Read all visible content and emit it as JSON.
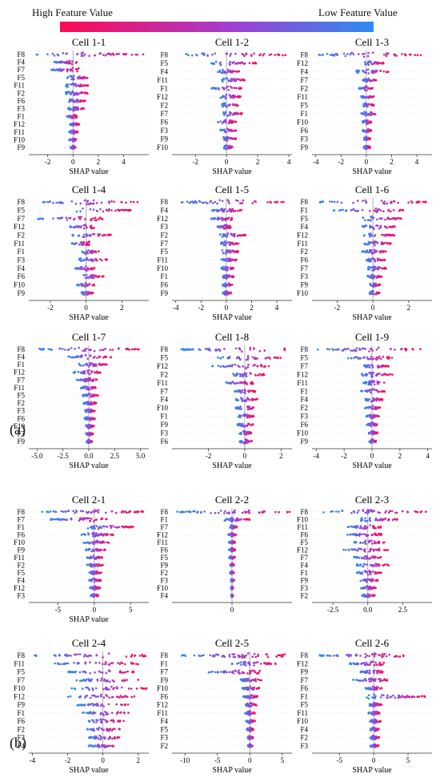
{
  "legend": {
    "high_label": "High Feature Value",
    "low_label": "Low Feature Value",
    "colors": {
      "high": "#ff0a54",
      "mid": "#a23fd1",
      "low": "#2c8cf2"
    }
  },
  "panel_labels": {
    "a": "(a)",
    "b": "(b)"
  },
  "chart_data": [
    {
      "type": "scatter",
      "title": "Cell 1-1",
      "xlabel": "SHAP value",
      "xlim": [
        -3.5,
        6
      ],
      "xticks": [
        -2,
        0,
        2,
        4
      ],
      "features": [
        "F8",
        "F4",
        "F7",
        "F5",
        "F11",
        "F2",
        "F6",
        "F3",
        "F1",
        "F12",
        "F11",
        "F10",
        "F9"
      ],
      "ranges": [
        [
          -3.0,
          5.8
        ],
        [
          -1.5,
          0.3
        ],
        [
          -1.8,
          0.5
        ],
        [
          -0.5,
          1.3
        ],
        [
          -0.6,
          1.2
        ],
        [
          -0.6,
          1.3
        ],
        [
          -0.5,
          1.0
        ],
        [
          -0.4,
          0.9
        ],
        [
          -0.5,
          0.3
        ],
        [
          -0.3,
          0.5
        ],
        [
          -0.3,
          0.4
        ],
        [
          -0.3,
          0.3
        ],
        [
          -0.2,
          0.2
        ]
      ]
    },
    {
      "type": "scatter",
      "title": "Cell 1-2",
      "xlabel": "SHAP value",
      "xlim": [
        -3.5,
        4.2
      ],
      "xticks": [
        -2,
        0,
        2,
        4
      ],
      "features": [
        "F8",
        "F5",
        "F4",
        "F11",
        "F1",
        "F12",
        "F2",
        "F7",
        "F6",
        "F3",
        "F9",
        "F10"
      ],
      "ranges": [
        [
          -2.7,
          3.8
        ],
        [
          -1.0,
          2.0
        ],
        [
          -0.6,
          0.9
        ],
        [
          -0.3,
          1.2
        ],
        [
          -1.0,
          1.0
        ],
        [
          -0.5,
          1.0
        ],
        [
          -0.3,
          0.8
        ],
        [
          -0.3,
          1.0
        ],
        [
          -0.7,
          0.6
        ],
        [
          -0.4,
          0.6
        ],
        [
          -0.3,
          0.6
        ],
        [
          -0.2,
          0.4
        ]
      ]
    },
    {
      "type": "scatter",
      "title": "Cell 1-3",
      "xlabel": "SHAP value",
      "xlim": [
        -4.3,
        5.2
      ],
      "xticks": [
        -4,
        -2,
        0,
        2,
        4
      ],
      "features": [
        "F8",
        "F12",
        "F4",
        "F7",
        "F2",
        "F11",
        "F5",
        "F1",
        "F10",
        "F6",
        "F3",
        "F9"
      ],
      "ranges": [
        [
          -4.0,
          4.6
        ],
        [
          -0.3,
          1.4
        ],
        [
          -0.8,
          1.8
        ],
        [
          -0.3,
          0.8
        ],
        [
          -0.6,
          0.5
        ],
        [
          -0.4,
          0.6
        ],
        [
          -0.3,
          0.6
        ],
        [
          -0.4,
          1.0
        ],
        [
          -0.3,
          0.4
        ],
        [
          -0.3,
          0.4
        ],
        [
          -0.2,
          0.3
        ],
        [
          -0.2,
          0.3
        ]
      ]
    },
    {
      "type": "scatter",
      "title": "Cell 1-4",
      "xlabel": "SHAP value",
      "xlim": [
        -3.2,
        3.5
      ],
      "xticks": [
        -2,
        0,
        2
      ],
      "features": [
        "F8",
        "F5",
        "F7",
        "F12",
        "F2",
        "F11",
        "F1",
        "F3",
        "F4",
        "F6",
        "F10",
        "F9"
      ],
      "ranges": [
        [
          -2.8,
          3.0
        ],
        [
          -0.6,
          2.5
        ],
        [
          -2.8,
          1.0
        ],
        [
          -1.0,
          0.5
        ],
        [
          -0.8,
          1.4
        ],
        [
          -0.8,
          0.2
        ],
        [
          -0.3,
          0.7
        ],
        [
          -0.4,
          1.2
        ],
        [
          -0.7,
          0.5
        ],
        [
          -0.4,
          1.0
        ],
        [
          -0.5,
          0.5
        ],
        [
          -0.3,
          0.4
        ]
      ]
    },
    {
      "type": "scatter",
      "title": "Cell 1-5",
      "xlabel": "SHAP value",
      "xlim": [
        -4.3,
        5.2
      ],
      "xticks": [
        -4,
        -2,
        0,
        2,
        4
      ],
      "features": [
        "F8",
        "F4",
        "F12",
        "F3",
        "F2",
        "F7",
        "F5",
        "F11",
        "F10",
        "F1",
        "F6",
        "F9"
      ],
      "ranges": [
        [
          -4.0,
          4.8
        ],
        [
          -1.2,
          1.2
        ],
        [
          -1.2,
          0.5
        ],
        [
          -0.8,
          0.4
        ],
        [
          -0.5,
          1.5
        ],
        [
          -0.5,
          1.0
        ],
        [
          -0.4,
          1.0
        ],
        [
          -0.4,
          0.8
        ],
        [
          -0.4,
          0.6
        ],
        [
          -0.3,
          0.6
        ],
        [
          -0.3,
          0.5
        ],
        [
          -0.3,
          0.4
        ]
      ]
    },
    {
      "type": "scatter",
      "title": "Cell 1-6",
      "xlabel": "SHAP value",
      "xlim": [
        -3.4,
        3.3
      ],
      "xticks": [
        -2,
        0,
        2
      ],
      "features": [
        "F8",
        "F1",
        "F5",
        "F4",
        "F12",
        "F11",
        "F2",
        "F6",
        "F7",
        "F3",
        "F9",
        "F10"
      ],
      "ranges": [
        [
          -3.0,
          3.0
        ],
        [
          -2.2,
          1.8
        ],
        [
          -0.6,
          1.6
        ],
        [
          -0.6,
          1.3
        ],
        [
          -0.5,
          1.2
        ],
        [
          -0.5,
          1.0
        ],
        [
          -0.6,
          0.8
        ],
        [
          -0.4,
          0.7
        ],
        [
          -0.3,
          0.8
        ],
        [
          -0.3,
          0.5
        ],
        [
          -0.2,
          0.4
        ],
        [
          -0.2,
          0.4
        ]
      ]
    },
    {
      "type": "scatter",
      "title": "Cell 1-7",
      "xlabel": "SHAP value",
      "xlim": [
        -5.8,
        5.8
      ],
      "xticks": [
        -5.0,
        -2.5,
        0.0,
        2.5,
        5.0
      ],
      "features": [
        "F8",
        "F4",
        "F1",
        "F12",
        "F7",
        "F11",
        "F5",
        "F2",
        "F3",
        "F6",
        "F10",
        "F3",
        "F9"
      ],
      "ranges": [
        [
          -5.0,
          5.2
        ],
        [
          -2.0,
          2.2
        ],
        [
          -1.0,
          1.8
        ],
        [
          -1.5,
          1.2
        ],
        [
          -1.2,
          0.8
        ],
        [
          -0.8,
          0.8
        ],
        [
          -0.6,
          0.9
        ],
        [
          -0.5,
          0.8
        ],
        [
          -0.4,
          0.6
        ],
        [
          -0.4,
          0.6
        ],
        [
          -0.3,
          0.5
        ],
        [
          -0.3,
          0.4
        ],
        [
          -0.2,
          0.3
        ]
      ]
    },
    {
      "type": "scatter",
      "title": "Cell 1-8",
      "xlabel": "SHAP value",
      "xlim": [
        -4.0,
        2.6
      ],
      "xticks": [
        -2,
        0,
        2
      ],
      "features": [
        "F8",
        "F5",
        "F12",
        "F2",
        "F11",
        "F7",
        "F4",
        "F10",
        "F1",
        "F9",
        "F3",
        "F6"
      ],
      "ranges": [
        [
          -3.5,
          2.3
        ],
        [
          -1.5,
          2.0
        ],
        [
          -1.8,
          1.5
        ],
        [
          -0.8,
          1.2
        ],
        [
          -1.2,
          0.5
        ],
        [
          -0.6,
          0.6
        ],
        [
          -0.5,
          0.7
        ],
        [
          -0.5,
          0.6
        ],
        [
          -0.4,
          0.5
        ],
        [
          -0.4,
          0.5
        ],
        [
          -0.3,
          0.4
        ],
        [
          -0.3,
          0.4
        ]
      ]
    },
    {
      "type": "scatter",
      "title": "Cell 1-9",
      "xlabel": "SHAP value",
      "xlim": [
        -4.3,
        4.3
      ],
      "xticks": [
        -4,
        -2,
        0,
        2,
        4
      ],
      "features": [
        "F8",
        "F5",
        "F7",
        "F12",
        "F11",
        "F1",
        "F4",
        "F2",
        "F3",
        "F6",
        "F10",
        "F9"
      ],
      "ranges": [
        [
          -4.0,
          3.8
        ],
        [
          -1.8,
          1.5
        ],
        [
          -0.6,
          1.2
        ],
        [
          -0.8,
          1.5
        ],
        [
          -0.6,
          1.0
        ],
        [
          -0.8,
          1.0
        ],
        [
          -0.5,
          0.8
        ],
        [
          -0.5,
          0.6
        ],
        [
          -0.4,
          0.5
        ],
        [
          -0.4,
          0.5
        ],
        [
          -0.3,
          0.4
        ],
        [
          -0.2,
          0.3
        ]
      ]
    },
    {
      "type": "scatter",
      "title": "Cell 2-1",
      "xlabel": "SHAP value",
      "xlim": [
        -9.0,
        7.5
      ],
      "xticks": [
        -5,
        0,
        5
      ],
      "features": [
        "F8",
        "F7",
        "F1",
        "F6",
        "F10",
        "F9",
        "F11",
        "F2",
        "F5",
        "F4",
        "F12",
        "F3"
      ],
      "ranges": [
        [
          -7.5,
          7.0
        ],
        [
          -6.0,
          1.8
        ],
        [
          -1.5,
          5.5
        ],
        [
          -1.8,
          2.8
        ],
        [
          -1.5,
          2.0
        ],
        [
          -1.2,
          1.5
        ],
        [
          -1.0,
          1.2
        ],
        [
          -1.0,
          1.2
        ],
        [
          -0.8,
          1.0
        ],
        [
          -0.8,
          0.9
        ],
        [
          -0.6,
          0.8
        ],
        [
          -0.5,
          0.6
        ]
      ]
    },
    {
      "type": "scatter",
      "title": "Cell 2-2",
      "xlabel": "",
      "xlim": [
        -6.0,
        6.0
      ],
      "xticks": [
        0
      ],
      "features": [
        "F8",
        "F1",
        "F7",
        "F12",
        "F11",
        "F6",
        "F5",
        "F9",
        "F2",
        "F3",
        "F10",
        "F4"
      ],
      "ranges": [
        [
          -5.5,
          5.8
        ],
        [
          -0.8,
          1.8
        ],
        [
          -0.2,
          0.5
        ],
        [
          -0.4,
          0.4
        ],
        [
          -0.3,
          0.3
        ],
        [
          -0.3,
          0.3
        ],
        [
          -0.3,
          0.3
        ],
        [
          -0.2,
          0.2
        ],
        [
          -0.2,
          0.2
        ],
        [
          -0.1,
          0.2
        ],
        [
          -0.1,
          0.1
        ],
        [
          -0.1,
          0.1
        ]
      ]
    },
    {
      "type": "scatter",
      "title": "Cell 2-3",
      "xlabel": "",
      "xlim": [
        -4.0,
        4.6
      ],
      "xticks": [
        -2.5,
        0.0,
        2.5
      ],
      "features": [
        "F8",
        "F10",
        "F11",
        "F6",
        "F5",
        "F12",
        "F7",
        "F4",
        "F1",
        "F9",
        "F3",
        "F2"
      ],
      "ranges": [
        [
          -3.5,
          4.4
        ],
        [
          -0.5,
          2.2
        ],
        [
          -1.5,
          1.0
        ],
        [
          -1.5,
          1.0
        ],
        [
          -1.0,
          1.2
        ],
        [
          -1.8,
          1.5
        ],
        [
          -1.0,
          1.0
        ],
        [
          -0.8,
          1.5
        ],
        [
          -0.8,
          1.0
        ],
        [
          -0.6,
          0.8
        ],
        [
          -0.5,
          0.6
        ],
        [
          -0.4,
          0.5
        ]
      ]
    },
    {
      "type": "scatter",
      "title": "Cell 2-4",
      "xlabel": "SHAP value",
      "xlim": [
        -4.2,
        2.6
      ],
      "xticks": [
        -4,
        -2,
        0,
        2
      ],
      "features": [
        "F8",
        "F11",
        "F5",
        "F7",
        "F10",
        "F12",
        "F9",
        "F1",
        "F6",
        "F2",
        "F3",
        "F4"
      ],
      "ranges": [
        [
          -4.0,
          2.5
        ],
        [
          -3.0,
          2.0
        ],
        [
          -2.0,
          2.0
        ],
        [
          -1.5,
          2.0
        ],
        [
          -1.8,
          2.5
        ],
        [
          -2.0,
          1.8
        ],
        [
          -1.5,
          1.5
        ],
        [
          -1.2,
          1.5
        ],
        [
          -1.0,
          1.2
        ],
        [
          -1.0,
          1.0
        ],
        [
          -0.8,
          1.0
        ],
        [
          -0.8,
          0.8
        ]
      ]
    },
    {
      "type": "scatter",
      "title": "Cell 2-5",
      "xlabel": "SHAP value",
      "xlim": [
        -12.0,
        6.5
      ],
      "xticks": [
        -10,
        -5,
        0,
        5
      ],
      "features": [
        "F8",
        "F1",
        "F7",
        "F9",
        "F10",
        "F6",
        "F12",
        "F11",
        "F4",
        "F5",
        "F3",
        "F2"
      ],
      "ranges": [
        [
          -10.5,
          5.5
        ],
        [
          -3.0,
          4.0
        ],
        [
          -6.5,
          2.0
        ],
        [
          -1.5,
          2.0
        ],
        [
          -1.2,
          1.5
        ],
        [
          -1.0,
          1.2
        ],
        [
          -0.8,
          1.0
        ],
        [
          -0.8,
          0.8
        ],
        [
          -0.6,
          0.8
        ],
        [
          -0.5,
          0.6
        ],
        [
          -0.4,
          0.5
        ],
        [
          -0.3,
          0.4
        ]
      ]
    },
    {
      "type": "scatter",
      "title": "Cell 2-6",
      "xlabel": "SHAP value",
      "xlim": [
        -9.0,
        8.5
      ],
      "xticks": [
        -5,
        0,
        5
      ],
      "features": [
        "F8",
        "F12",
        "F9",
        "F7",
        "F6",
        "F1",
        "F5",
        "F11",
        "F10",
        "F4",
        "F2",
        "F3"
      ],
      "ranges": [
        [
          -8.0,
          5.0
        ],
        [
          -3.5,
          1.5
        ],
        [
          -2.0,
          1.5
        ],
        [
          -3.0,
          2.5
        ],
        [
          -1.2,
          1.2
        ],
        [
          -1.0,
          7.5
        ],
        [
          -0.8,
          1.2
        ],
        [
          -0.8,
          1.0
        ],
        [
          -0.6,
          1.0
        ],
        [
          -0.6,
          0.9
        ],
        [
          -0.5,
          0.8
        ],
        [
          -0.5,
          0.7
        ]
      ]
    }
  ]
}
